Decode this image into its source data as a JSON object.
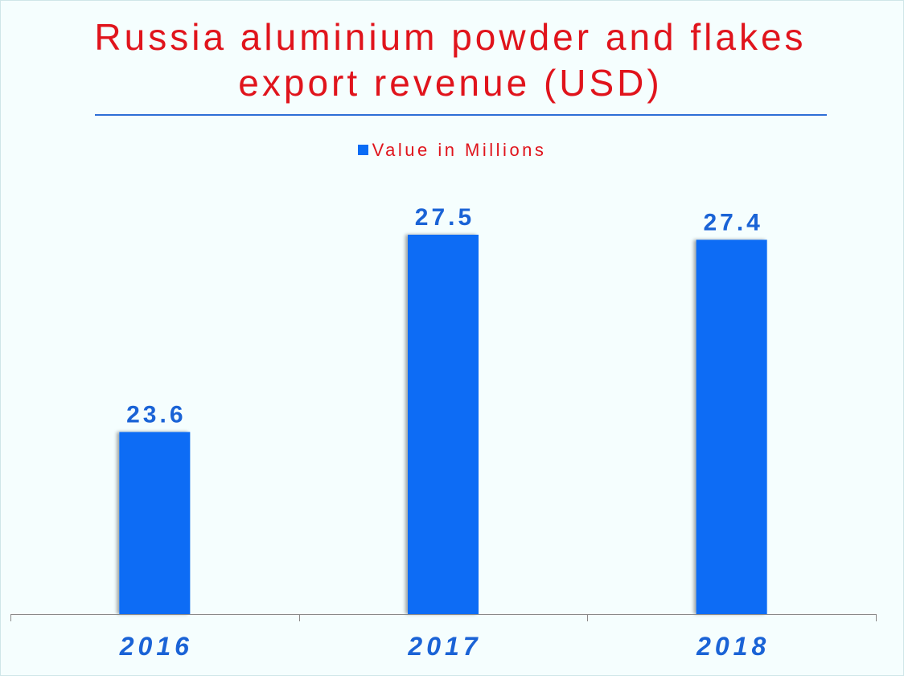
{
  "chart_data": {
    "type": "bar",
    "title": "Russia aluminium powder and flakes export revenue (USD)",
    "categories": [
      "2016",
      "2017",
      "2018"
    ],
    "series": [
      {
        "name": "Value in Millions",
        "values": [
          23.6,
          27.5,
          27.4
        ]
      }
    ],
    "data_labels": [
      "23.6",
      "27.5",
      "27.4"
    ],
    "ylim": [
      0,
      27.5
    ],
    "y_axis_visible": false,
    "grid": false,
    "legend_position": "top-center",
    "colors": {
      "bar": "#0a6cf5",
      "title": "#e0141c",
      "labels": "#1a63d6",
      "background": "#f5fefe"
    }
  }
}
